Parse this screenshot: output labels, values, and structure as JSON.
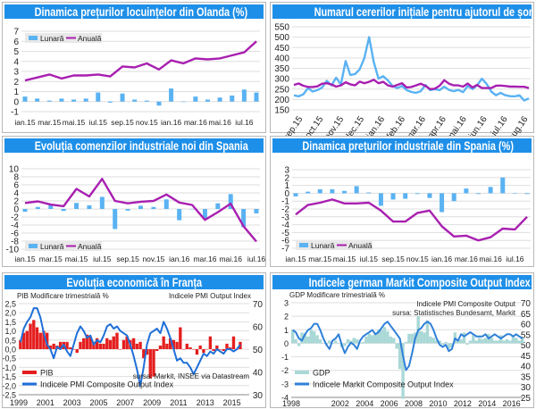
{
  "chart_data": [
    {
      "type": "bar+line",
      "title": "Dinamica prețurilor locuințelor din Olanda (%)",
      "categories": [
        "ian.15",
        "feb.15",
        "mar.15",
        "apr.15",
        "mai.15",
        "iun.15",
        "iul.15",
        "aug.15",
        "sep.15",
        "oct.15",
        "nov.15",
        "dec.15",
        "ian.16",
        "feb.16",
        "mar.16",
        "apr.16",
        "mai.16",
        "iun.16",
        "iul.16",
        "aug.16"
      ],
      "xticks": [
        "ian.15",
        "mar.15",
        "mai.15",
        "iul.15",
        "sep.15",
        "nov.15",
        "ian.16",
        "mar.16",
        "mai.16",
        "iul.16"
      ],
      "ylim": [
        -1,
        7
      ],
      "yticks": [
        "-1",
        "0",
        "1",
        "2",
        "3",
        "4",
        "5",
        "6",
        "7"
      ],
      "grid": true,
      "legend": "top-left",
      "series": [
        {
          "name": "Lunară",
          "kind": "bar",
          "color": "#5ab2f2",
          "values": [
            0.5,
            0.3,
            0.1,
            0.3,
            0.2,
            0.3,
            0.9,
            -0.1,
            0.8,
            0.2,
            0.1,
            -0.4,
            1.3,
            0.0,
            0.5,
            0.2,
            0.4,
            0.6,
            1.2,
            0.9
          ]
        },
        {
          "name": "Anuală",
          "kind": "line",
          "color": "#a81fb0",
          "values": [
            2.1,
            2.4,
            2.7,
            2.3,
            2.6,
            2.6,
            2.7,
            2.5,
            3.5,
            3.4,
            3.8,
            3.2,
            4.1,
            3.8,
            4.3,
            4.2,
            4.3,
            4.6,
            4.9,
            6.0
          ]
        }
      ]
    },
    {
      "type": "line",
      "title": "Numarul cererilor inițiale pentru ajutorul de șomaj din SUA (mii)",
      "frequency": "weekly",
      "xticks": [
        "sep.15",
        "oct.15",
        "nov.15",
        "dec.15",
        "ian.16",
        "feb.16",
        "mar.16",
        "apr.16",
        "mai.16",
        "iun.16",
        "iul.16",
        "aug.16"
      ],
      "ylim": [
        150,
        550
      ],
      "yticks": [
        "150",
        "200",
        "250",
        "300",
        "350",
        "400",
        "450",
        "500",
        "550"
      ],
      "grid": true,
      "series": [
        {
          "kind": "line",
          "color": "#5ab2f2",
          "values": [
            220,
            215,
            225,
            255,
            238,
            245,
            258,
            290,
            268,
            305,
            272,
            385,
            318,
            322,
            345,
            400,
            500,
            380,
            300,
            312,
            292,
            265,
            255,
            265,
            245,
            236,
            232,
            240,
            270,
            245,
            250,
            245,
            262,
            246,
            240,
            246,
            235,
            265,
            250,
            268,
            300,
            275,
            238,
            220,
            232,
            220,
            216,
            215,
            220,
            195,
            205
          ]
        },
        {
          "kind": "line",
          "color": "#a81fb0",
          "values": [
            270,
            277,
            266,
            260,
            260,
            263,
            276,
            278,
            272,
            262,
            268,
            283,
            273,
            268,
            286,
            278,
            285,
            295,
            278,
            285,
            268,
            262,
            270,
            278,
            258,
            260,
            268,
            276,
            265,
            250,
            252,
            266,
            293,
            276,
            268,
            268,
            262,
            277,
            258,
            270,
            255,
            255,
            255,
            266,
            267,
            265,
            262,
            262,
            261,
            261,
            255
          ]
        }
      ]
    },
    {
      "type": "bar+line",
      "title": "Evoluția comenzilor industriale noi din Spania",
      "categories": [
        "ian.15",
        "feb.15",
        "mar.15",
        "apr.15",
        "mai.15",
        "iun.15",
        "iul.15",
        "aug.15",
        "sep.15",
        "oct.15",
        "nov.15",
        "dec.15",
        "ian.16",
        "feb.16",
        "mar.16",
        "apr.16",
        "mai.16",
        "iun.16",
        "iul.16"
      ],
      "xticks": [
        "ian.15",
        "mar.15",
        "mai.15",
        "iul.15",
        "sep.15",
        "nov.15",
        "ian.16",
        "mar.16",
        "mai.16",
        "iul.16"
      ],
      "ylim": [
        -10,
        10
      ],
      "yticks": [
        "-10",
        "-8",
        "-6",
        "-4",
        "-2",
        "0",
        "2",
        "4",
        "6",
        "8",
        "10"
      ],
      "grid": true,
      "legend": "bottom-left",
      "series": [
        {
          "name": "Lunară",
          "kind": "bar",
          "color": "#5ab2f2",
          "values": [
            -0.7,
            0.5,
            1.0,
            -0.5,
            1.5,
            0.9,
            3.0,
            -5.0,
            -0.4,
            0.8,
            0.5,
            2.4,
            -2.8,
            0.0,
            -2.4,
            1.4,
            3.7,
            -4.5,
            -1.1
          ]
        },
        {
          "name": "Anuală",
          "kind": "line",
          "color": "#a81fb0",
          "values": [
            1.5,
            1.9,
            1.1,
            0.7,
            5.0,
            3.1,
            7.5,
            2.0,
            1.4,
            1.8,
            2.0,
            3.6,
            1.6,
            1.0,
            -2.7,
            -0.8,
            1.3,
            -4.3,
            -8.1
          ]
        }
      ]
    },
    {
      "type": "bar+line",
      "title": "Dinamica prețurilor industriale din Spania (%)",
      "categories": [
        "ian.15",
        "feb.15",
        "mar.15",
        "apr.15",
        "mai.15",
        "iun.15",
        "iul.15",
        "aug.15",
        "sep.15",
        "oct.15",
        "nov.15",
        "dec.15",
        "ian.16",
        "feb.16",
        "mar.16",
        "apr.16",
        "mai.16",
        "iun.16",
        "iul.16",
        "aug.16"
      ],
      "xticks": [
        "ian.15",
        "mar.15",
        "mai.15",
        "iul.15",
        "sep.15",
        "nov.15",
        "ian.16",
        "mar.16",
        "mai.16",
        "iul.16"
      ],
      "ylim": [
        -7,
        3
      ],
      "yticks": [
        "-7",
        "-6",
        "-5",
        "-4",
        "-3",
        "-2",
        "-1",
        "0",
        "1",
        "2",
        "3"
      ],
      "grid": true,
      "legend": "bottom-left",
      "series": [
        {
          "name": "Lunară",
          "kind": "bar",
          "color": "#5ab2f2",
          "values": [
            -0.4,
            0.2,
            0.5,
            0.5,
            0.3,
            0.9,
            0.1,
            -1.6,
            -0.8,
            -0.7,
            -0.1,
            -0.6,
            -2.4,
            -1.0,
            0.6,
            -0.1,
            0.8,
            2.0,
            0.0,
            -0.1
          ]
        },
        {
          "name": "Anuală",
          "kind": "line",
          "color": "#a81fb0",
          "values": [
            -2.7,
            -1.5,
            -1.2,
            -0.8,
            -1.3,
            -1.3,
            -1.2,
            -2.2,
            -3.6,
            -3.6,
            -2.5,
            -2.2,
            -4.2,
            -5.5,
            -5.4,
            -6.0,
            -5.6,
            -4.5,
            -4.6,
            -3.0
          ]
        }
      ]
    },
    {
      "type": "bar+line dual-axis",
      "title": "Evoluția economică în Franța",
      "start": "1999-Q1",
      "frequency": "quarterly",
      "xlim": [
        1999,
        2016.3
      ],
      "xticks": [
        "1999",
        "2001",
        "2003",
        "2005",
        "2007",
        "2009",
        "2011",
        "2013",
        "2015"
      ],
      "ylim": [
        -2.5,
        2.5
      ],
      "yticks": [
        "-2,5",
        "-2,0",
        "-1,5",
        "-1,0",
        "-0,5",
        "0,0",
        "0,5",
        "1,0",
        "1,5",
        "2,0",
        "2,5"
      ],
      "y2lim": [
        30,
        70
      ],
      "y2ticks": [
        "30",
        "40",
        "50",
        "60",
        "70"
      ],
      "ylabel": "PIB Modificare trimestrială %",
      "y2label": "Indicele PMI Output Index",
      "source": "sursa: Markit, INSEE via Datastream",
      "grid": true,
      "legend": "bottom-left",
      "series": [
        {
          "name": "PIB",
          "kind": "bar",
          "axis": "left",
          "color": "#e41e1e",
          "values": [
            0.5,
            0.9,
            1.0,
            1.4,
            1.6,
            1.2,
            0.9,
            1.0,
            0.9,
            0.2,
            0.3,
            0.2,
            0.4,
            0.4,
            0.4,
            0.1,
            0.0,
            -0.2,
            0.4,
            0.6,
            0.8,
            0.7,
            0.4,
            0.6,
            0.3,
            0.3,
            0.6,
            0.5,
            0.7,
            0.9,
            0.0,
            0.5,
            0.7,
            0.5,
            0.6,
            0.3,
            0.4,
            -0.5,
            -0.3,
            -1.6,
            -1.5,
            -0.1,
            0.2,
            0.7,
            0.3,
            0.6,
            0.5,
            0.4,
            1.2,
            0.0,
            0.3,
            0.1,
            0.0,
            -0.3,
            0.2,
            -0.2,
            0.0,
            0.7,
            -0.1,
            0.2,
            0.0,
            -0.1,
            0.3,
            0.1,
            0.7,
            0.0,
            0.4
          ]
        },
        {
          "name": "Indicele PMI Composite Output Index",
          "kind": "line",
          "axis": "right",
          "color": "#1f6fd8",
          "values": [
            53,
            59,
            62,
            64,
            68,
            68,
            64,
            57,
            52,
            50,
            46,
            51,
            50,
            52,
            49,
            47,
            52,
            57,
            60,
            58,
            55,
            56,
            52,
            54,
            53,
            56,
            60,
            61,
            59,
            60,
            58,
            57,
            56,
            52,
            47,
            41,
            34,
            42,
            52,
            57,
            58,
            59,
            57,
            62,
            59,
            55,
            50,
            45,
            46,
            44,
            44,
            42,
            39,
            42,
            45,
            48,
            47,
            49,
            48,
            50,
            49,
            48,
            50,
            50,
            49,
            50,
            52
          ]
        }
      ]
    },
    {
      "type": "area+line dual-axis",
      "title": "Indicele german Markit Composite Output Index vs. PIB",
      "start": "1998-Q1",
      "frequency": "quarterly",
      "xlim": [
        1998,
        2016.9
      ],
      "xticks": [
        "1998",
        "2002",
        "2004",
        "2006",
        "2008",
        "2010",
        "2012",
        "2014",
        "2016"
      ],
      "ylim": [
        -4,
        3
      ],
      "yticks": [
        "-4",
        "-3",
        "-2",
        "-1",
        "0",
        "1",
        "2",
        "3"
      ],
      "y2lim": [
        25,
        70
      ],
      "y2ticks": [
        "25",
        "30",
        "35",
        "40",
        "45",
        "50",
        "55",
        "60",
        "65",
        "70"
      ],
      "ylabel": "GDP  Modificare trimestrială %",
      "y2label": "Indicele PMI Composite Output",
      "source": "sursa: Statistisches Bundesamt, Markit",
      "legend": "bottom-left",
      "series": [
        {
          "name": "GDP",
          "kind": "area",
          "axis": "left",
          "color": "#a9d8d6",
          "values": [
            1.0,
            0.3,
            -0.2,
            0.8,
            0.7,
            0.5,
            1.0,
            0.9,
            0.6,
            0.3,
            0.0,
            -0.1,
            0.2,
            0.0,
            0.2,
            0.0,
            -0.3,
            -0.2,
            0.3,
            0.2,
            0.4,
            0.3,
            0.0,
            0.1,
            0.5,
            0.7,
            0.6,
            0.8,
            1.0,
            1.0,
            1.2,
            0.9,
            0.5,
            0.4,
            -0.4,
            -1.9,
            -4.1,
            0.1,
            0.7,
            0.7,
            0.8,
            2.0,
            0.9,
            0.8,
            1.7,
            0.5,
            0.4,
            0.2,
            0.2,
            -0.1,
            0.1,
            -0.4,
            -0.3,
            0.8,
            0.3,
            0.3,
            0.8,
            -0.1,
            0.2,
            0.6,
            0.2,
            0.4,
            0.3,
            0.4,
            0.7,
            0.4,
            0.2,
            0.2,
            0.6,
            0.2,
            0.3,
            0.2,
            0.6,
            0.4,
            0.2,
            0.4
          ]
        },
        {
          "name": "Indicele Markit Composite Output Index",
          "kind": "line",
          "axis": "right",
          "color": "#2f80d8",
          "values": [
            57,
            56,
            53,
            52,
            55,
            57,
            58,
            60,
            60,
            57,
            53,
            50,
            48,
            52,
            53,
            55,
            50,
            46,
            49,
            51,
            50,
            48,
            52,
            54,
            55,
            56,
            57,
            55,
            56,
            58,
            60,
            61,
            59,
            57,
            55,
            53,
            45,
            38,
            40,
            46,
            53,
            57,
            58,
            60,
            61,
            60,
            57,
            53,
            50,
            49,
            50,
            47,
            48,
            53,
            52,
            55,
            54,
            55,
            56,
            55,
            54,
            54,
            54,
            55,
            53,
            54,
            55,
            54,
            53,
            54,
            55,
            55,
            54,
            55,
            54,
            53
          ]
        }
      ]
    }
  ]
}
